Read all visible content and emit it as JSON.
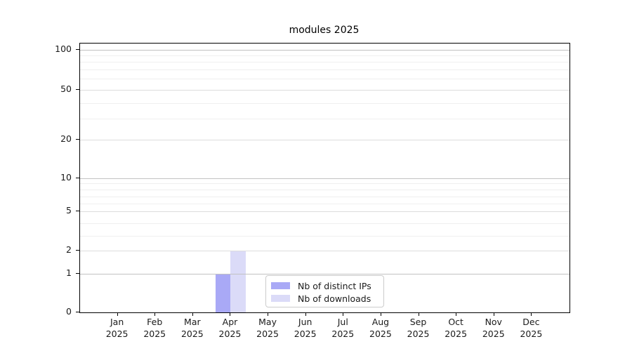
{
  "chart_data": {
    "type": "bar",
    "title": "modules 2025",
    "categories": [
      "Jan",
      "Feb",
      "Mar",
      "Apr",
      "May",
      "Jun",
      "Jul",
      "Aug",
      "Sep",
      "Oct",
      "Nov",
      "Dec"
    ],
    "category_year_label": "2025",
    "series": [
      {
        "name": "Nb of distinct IPs",
        "color": "#a9a9f6",
        "values": [
          0,
          0,
          0,
          1,
          0,
          0,
          0,
          0,
          0,
          0,
          0,
          0
        ]
      },
      {
        "name": "Nb of downloads",
        "color": "#dbdbf8",
        "values": [
          0,
          0,
          0,
          2,
          0,
          0,
          0,
          0,
          0,
          0,
          0,
          0
        ]
      }
    ],
    "yaxis": {
      "ticks": [
        0,
        1,
        2,
        5,
        10,
        20,
        50,
        100
      ],
      "minor_ticks": [
        3,
        4,
        6,
        7,
        8,
        9,
        30,
        40,
        60,
        70,
        80,
        90
      ],
      "scale": "log-like",
      "range": [
        0,
        110
      ]
    },
    "xlabel": "",
    "ylabel": "",
    "grid": true,
    "legend_position": "lower-center"
  }
}
